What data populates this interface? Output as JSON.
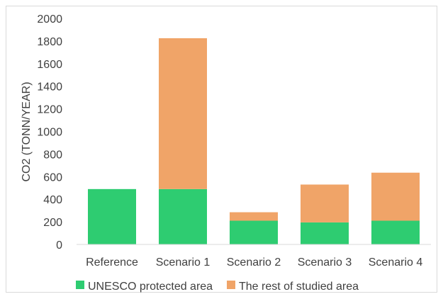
{
  "chart_data": {
    "type": "bar",
    "stacked": true,
    "title": "",
    "xlabel": "",
    "ylabel": "CO2 (TONN/YEAR)",
    "ylim": [
      0,
      2000
    ],
    "yticks": [
      0,
      200,
      400,
      600,
      800,
      1000,
      1200,
      1400,
      1600,
      1800,
      2000
    ],
    "grid": false,
    "legend_position": "bottom",
    "categories": [
      "Reference",
      "Scenario 1",
      "Scenario 2",
      "Scenario 3",
      "Scenario 4"
    ],
    "series": [
      {
        "name": "UNESCO protected area",
        "color": "#2ecc71",
        "values": [
          490,
          490,
          210,
          195,
          210
        ]
      },
      {
        "name": "The rest of studied area",
        "color": "#f0a468",
        "values": [
          0,
          1335,
          75,
          335,
          425
        ]
      }
    ]
  }
}
